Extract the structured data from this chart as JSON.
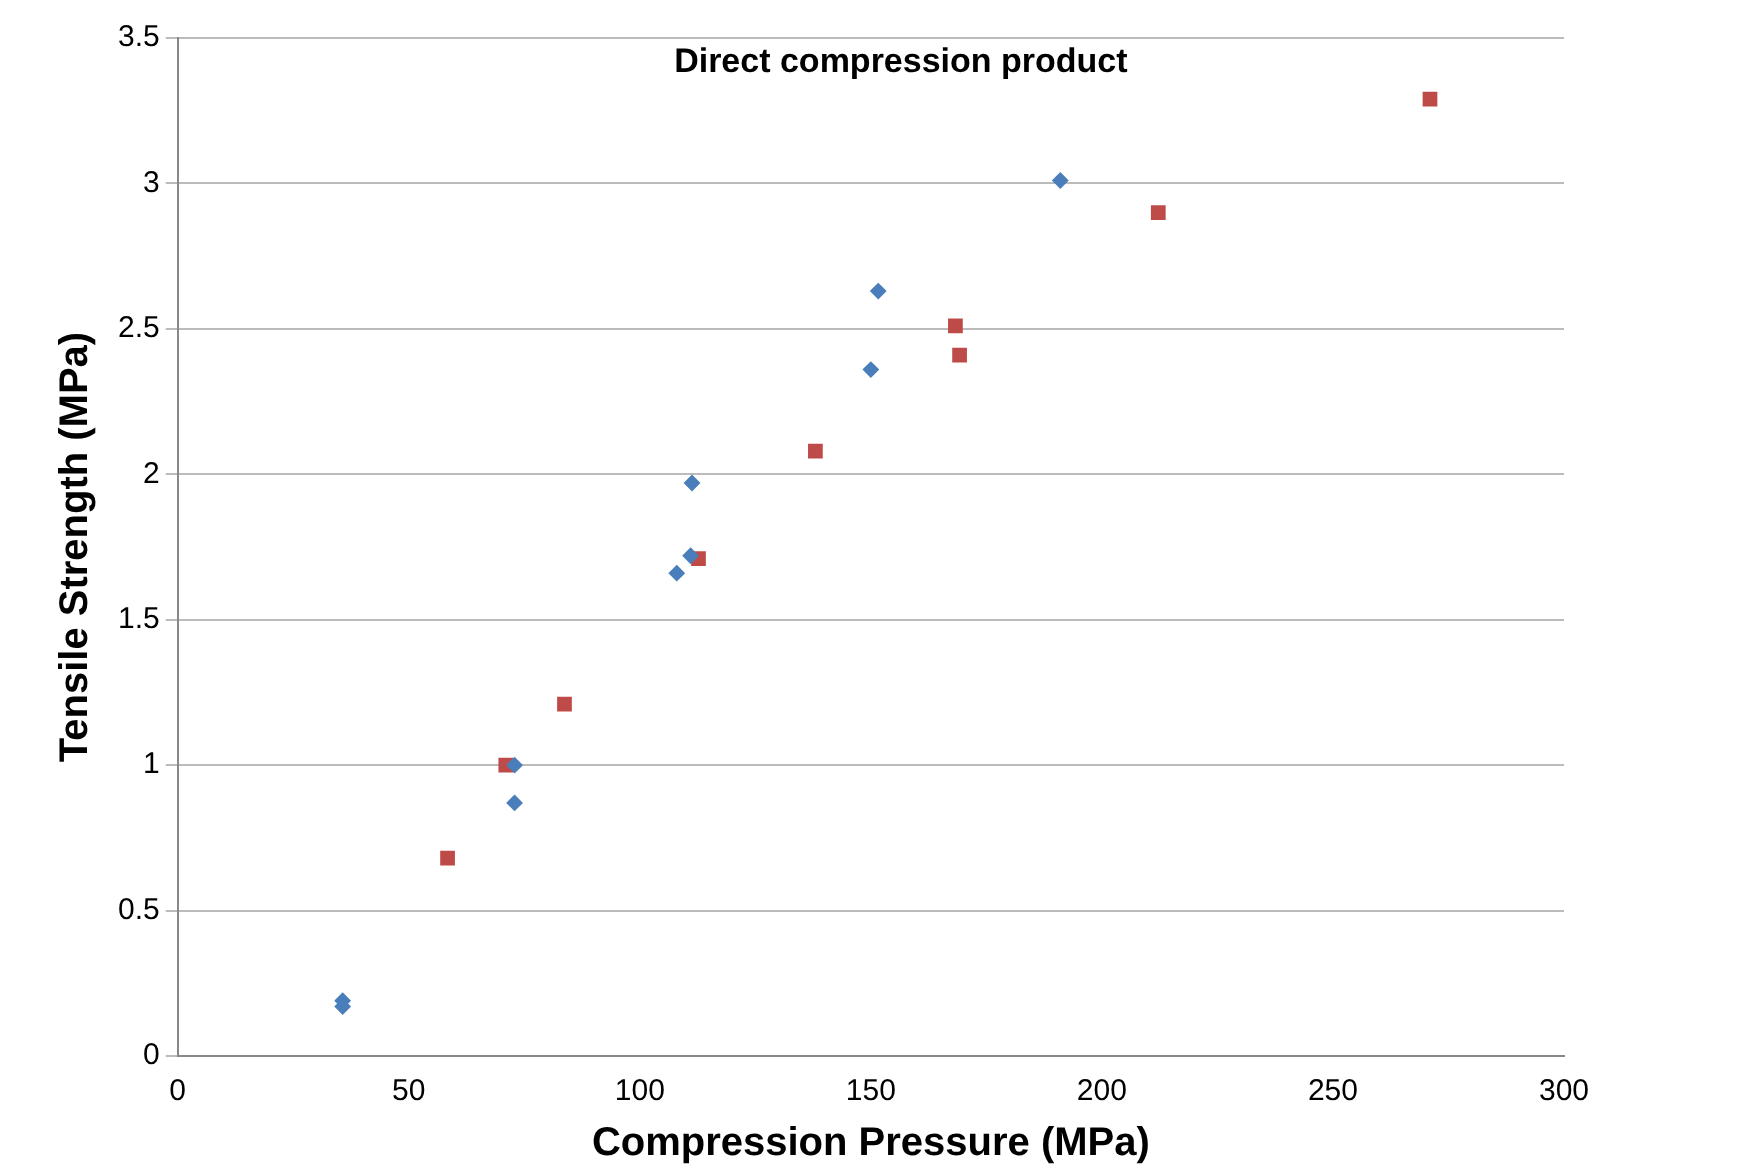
{
  "chart_data": {
    "type": "scatter",
    "title": "Direct compression product",
    "xlabel": "Compression Pressure (MPa)",
    "ylabel": "Tensile Strength (MPa)",
    "xlim": [
      0,
      300
    ],
    "xticks": [
      0,
      50,
      100,
      150,
      200,
      250,
      300
    ],
    "ylim": [
      0,
      3.5
    ],
    "yticks": [
      0,
      0.5,
      1,
      1.5,
      2,
      2.5,
      3,
      3.5
    ],
    "grid": "y",
    "series": [
      {
        "color": "#4a7ebb",
        "marker": "diamond",
        "x": [
          35.7,
          35.7,
          72.9,
          72.9,
          108,
          111,
          111.3,
          150,
          151.6,
          191
        ],
        "values": [
          0.19,
          0.17,
          1.0,
          0.87,
          1.66,
          1.72,
          1.97,
          2.36,
          2.63,
          3.01
        ]
      },
      {
        "color": "#be4b48",
        "marker": "square",
        "x": [
          58.4,
          71,
          83.7,
          112.7,
          138,
          168.3,
          169.2,
          212.2,
          271
        ],
        "values": [
          0.68,
          1.0,
          1.21,
          1.71,
          2.08,
          2.51,
          2.41,
          2.9,
          3.29
        ]
      }
    ]
  }
}
